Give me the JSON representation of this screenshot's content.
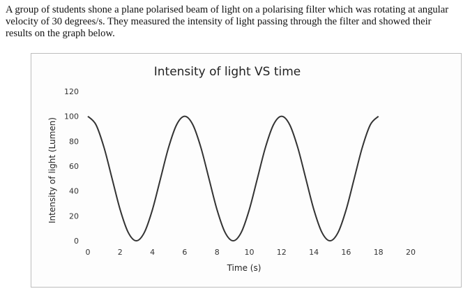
{
  "intro_text": "A group of students shone a plane polarised beam of light on a polarising filter which was rotating at angular velocity of 30 degrees/s. They measured the intensity of light passing through the filter and showed their results on the graph below.",
  "chart_data": {
    "type": "line",
    "title": "Intensity of light VS time",
    "xlabel": "Time (s)",
    "ylabel": "Intensity of light (Lumen)",
    "xlim": [
      0,
      20
    ],
    "ylim": [
      0,
      120
    ],
    "xticks": [
      0,
      2,
      4,
      6,
      8,
      10,
      12,
      14,
      16,
      18,
      20
    ],
    "yticks": [
      0,
      20,
      40,
      60,
      80,
      100,
      120
    ],
    "grid": false,
    "legend": "none",
    "line_color": "#333333",
    "series": [
      {
        "x": [
          0,
          0.5,
          1,
          1.5,
          2,
          2.5,
          3,
          3.5,
          4,
          4.5,
          5,
          5.5,
          6,
          6.5,
          7,
          7.5,
          8,
          8.5,
          9,
          9.5,
          10,
          10.5,
          11,
          11.5,
          12,
          12.5,
          13,
          13.5,
          14,
          14.5,
          15,
          15.5,
          16,
          16.5,
          17,
          17.5,
          18
        ],
        "y": [
          100,
          93.3,
          75,
          50,
          25,
          6.7,
          0,
          6.7,
          25,
          50,
          75,
          93.3,
          100,
          93.3,
          75,
          50,
          25,
          6.7,
          0,
          6.7,
          25,
          50,
          75,
          93.3,
          100,
          93.3,
          75,
          50,
          25,
          6.7,
          0,
          6.7,
          25,
          50,
          75,
          93.3,
          100
        ]
      }
    ]
  }
}
